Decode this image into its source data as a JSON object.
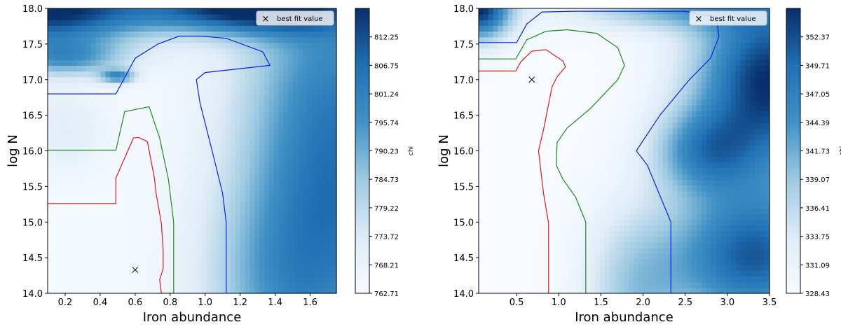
{
  "chart_data": [
    {
      "type": "heatmap",
      "xlabel": "Iron abundance",
      "ylabel": "log N",
      "xlim": [
        0.1,
        1.75
      ],
      "ylim": [
        14.0,
        18.0
      ],
      "xticks": [
        0.2,
        0.4,
        0.6,
        0.8,
        1.0,
        1.2,
        1.4,
        1.6
      ],
      "xtick_labels": [
        "0.2",
        "0.4",
        "0.6",
        "0.8",
        "1.0",
        "1.2",
        "1.4",
        "1.6"
      ],
      "yticks": [
        14.0,
        14.5,
        15.0,
        15.5,
        16.0,
        16.5,
        17.0,
        17.5,
        18.0
      ],
      "ytick_labels": [
        "14.0",
        "14.5",
        "15.0",
        "15.5",
        "16.0",
        "16.5",
        "17.0",
        "17.5",
        "18.0"
      ],
      "colorbar": {
        "label": "chi",
        "range": [
          762.71,
          817.75
        ],
        "colors": [
          "#f7fbff",
          "#08306b"
        ],
        "ticks": [
          762.71,
          768.21,
          773.72,
          779.22,
          784.73,
          790.23,
          795.74,
          801.24,
          806.75,
          812.25
        ],
        "tick_labels": [
          "762.71",
          "768.21",
          "773.72",
          "779.22",
          "784.73",
          "790.23",
          "795.74",
          "801.24",
          "806.75",
          "812.25"
        ]
      },
      "legend": {
        "marker": "×",
        "label": "best fit value",
        "position": "upper-right"
      },
      "best_fit": {
        "x": 0.6,
        "y": 14.33
      },
      "contours": [
        {
          "color": "#e31a1c",
          "points": [
            [
              0.1,
              15.26
            ],
            [
              0.49,
              15.26
            ],
            [
              0.49,
              15.62
            ],
            [
              0.59,
              16.18
            ],
            [
              0.62,
              16.19
            ],
            [
              0.67,
              16.13
            ],
            [
              0.71,
              15.62
            ],
            [
              0.72,
              15.4
            ],
            [
              0.75,
              14.98
            ],
            [
              0.76,
              14.6
            ],
            [
              0.76,
              14.35
            ],
            [
              0.74,
              14.19
            ],
            [
              0.75,
              14.0
            ]
          ]
        },
        {
          "color": "#1f8a1f",
          "points": [
            [
              0.1,
              16.01
            ],
            [
              0.49,
              16.01
            ],
            [
              0.54,
              16.55
            ],
            [
              0.68,
              16.62
            ],
            [
              0.74,
              16.18
            ],
            [
              0.79,
              15.6
            ],
            [
              0.82,
              15.0
            ],
            [
              0.82,
              14.0
            ]
          ]
        },
        {
          "color": "#0b20e6",
          "points": [
            [
              0.1,
              16.8
            ],
            [
              0.49,
              16.8
            ],
            [
              0.6,
              17.3
            ],
            [
              0.73,
              17.5
            ],
            [
              0.85,
              17.61
            ],
            [
              0.98,
              17.61
            ],
            [
              1.12,
              17.58
            ],
            [
              1.33,
              17.39
            ],
            [
              1.37,
              17.2
            ],
            [
              1.0,
              17.1
            ],
            [
              0.95,
              17.0
            ],
            [
              0.97,
              16.68
            ],
            [
              1.04,
              16.0
            ],
            [
              1.1,
              15.4
            ],
            [
              1.12,
              15.0
            ],
            [
              1.12,
              14.0
            ]
          ]
        }
      ],
      "field": {
        "base": 0.02,
        "bumps": [
          {
            "x": 0.1,
            "y": 18.0,
            "sx": 0.55,
            "sy": 0.55,
            "a": 1.0
          },
          {
            "x": 0.5,
            "y": 17.05,
            "sx": 0.1,
            "sy": 0.1,
            "a": 0.55
          },
          {
            "x": 0.2,
            "y": 17.3,
            "sx": 0.35,
            "sy": 0.25,
            "a": 0.45
          },
          {
            "x": 1.2,
            "y": 18.0,
            "sx": 0.6,
            "sy": 0.35,
            "a": 0.9
          },
          {
            "x": 1.75,
            "y": 16.0,
            "sx": 0.55,
            "sy": 3.0,
            "a": 0.75
          },
          {
            "x": 1.4,
            "y": 14.0,
            "sx": 0.45,
            "sy": 1.5,
            "a": 0.3
          },
          {
            "x": 0.2,
            "y": 16.3,
            "sx": 0.25,
            "sy": 0.6,
            "a": 0.15
          }
        ]
      }
    },
    {
      "type": "heatmap",
      "xlabel": "Iron abundance",
      "ylabel": "log N",
      "xlim": [
        0.05,
        3.5
      ],
      "ylim": [
        14.0,
        18.0
      ],
      "xticks": [
        0.5,
        1.0,
        1.5,
        2.0,
        2.5,
        3.0,
        3.5
      ],
      "xtick_labels": [
        "0.5",
        "1.0",
        "1.5",
        "2.0",
        "2.5",
        "3.0",
        "3.5"
      ],
      "yticks": [
        14.0,
        14.5,
        15.0,
        15.5,
        16.0,
        16.5,
        17.0,
        17.5,
        18.0
      ],
      "ytick_labels": [
        "14.0",
        "14.5",
        "15.0",
        "15.5",
        "16.0",
        "16.5",
        "17.0",
        "17.5",
        "18.0"
      ],
      "colorbar": {
        "label": "chi",
        "range": [
          328.43,
          355.03
        ],
        "colors": [
          "#f7fbff",
          "#08306b"
        ],
        "ticks": [
          328.43,
          331.09,
          333.75,
          336.41,
          339.07,
          341.73,
          344.39,
          347.05,
          349.71,
          352.37
        ],
        "tick_labels": [
          "328.43",
          "331.09",
          "333.75",
          "336.41",
          "339.07",
          "341.73",
          "344.39",
          "347.05",
          "349.71",
          "352.37"
        ]
      },
      "legend": {
        "marker": "×",
        "label": "best fit value",
        "position": "upper-right"
      },
      "best_fit": {
        "x": 0.68,
        "y": 17.0
      },
      "contours": [
        {
          "color": "#e31a1c",
          "points": [
            [
              0.05,
              17.12
            ],
            [
              0.49,
              17.12
            ],
            [
              0.55,
              17.25
            ],
            [
              0.68,
              17.4
            ],
            [
              0.85,
              17.42
            ],
            [
              1.05,
              17.26
            ],
            [
              1.08,
              17.18
            ],
            [
              0.98,
              17.04
            ],
            [
              0.92,
              16.9
            ],
            [
              0.82,
              16.3
            ],
            [
              0.76,
              16.0
            ],
            [
              0.82,
              15.4
            ],
            [
              0.88,
              14.98
            ],
            [
              0.88,
              14.0
            ]
          ]
        },
        {
          "color": "#1f8a1f",
          "points": [
            [
              0.05,
              17.29
            ],
            [
              0.49,
              17.29
            ],
            [
              0.62,
              17.56
            ],
            [
              0.85,
              17.68
            ],
            [
              1.1,
              17.7
            ],
            [
              1.45,
              17.65
            ],
            [
              1.7,
              17.45
            ],
            [
              1.78,
              17.2
            ],
            [
              1.7,
              17.0
            ],
            [
              1.38,
              16.6
            ],
            [
              1.1,
              16.32
            ],
            [
              0.98,
              16.12
            ],
            [
              0.97,
              15.8
            ],
            [
              1.05,
              15.6
            ],
            [
              1.2,
              15.35
            ],
            [
              1.32,
              15.0
            ],
            [
              1.32,
              14.0
            ]
          ]
        },
        {
          "color": "#0b20e6",
          "points": [
            [
              0.05,
              17.52
            ],
            [
              0.5,
              17.52
            ],
            [
              0.62,
              17.78
            ],
            [
              0.8,
              17.95
            ],
            [
              1.2,
              17.96
            ],
            [
              2.5,
              17.96
            ],
            [
              2.87,
              17.88
            ],
            [
              2.9,
              17.6
            ],
            [
              2.8,
              17.3
            ],
            [
              2.55,
              17.0
            ],
            [
              2.2,
              16.5
            ],
            [
              1.92,
              16.0
            ],
            [
              2.05,
              15.8
            ],
            [
              2.33,
              15.0
            ],
            [
              2.33,
              14.0
            ]
          ]
        }
      ],
      "field": {
        "base": 0.0,
        "bumps": [
          {
            "x": 0.05,
            "y": 18.0,
            "sx": 0.4,
            "sy": 0.45,
            "a": 1.0
          },
          {
            "x": 3.5,
            "y": 17.0,
            "sx": 0.9,
            "sy": 1.3,
            "a": 1.0
          },
          {
            "x": 3.3,
            "y": 14.5,
            "sx": 1.0,
            "sy": 1.0,
            "a": 0.85
          },
          {
            "x": 2.7,
            "y": 16.0,
            "sx": 0.6,
            "sy": 0.6,
            "a": 0.5
          },
          {
            "x": 2.3,
            "y": 18.0,
            "sx": 1.2,
            "sy": 0.3,
            "a": 0.45
          },
          {
            "x": 1.9,
            "y": 14.0,
            "sx": 0.6,
            "sy": 1.2,
            "a": 0.35
          }
        ]
      }
    }
  ]
}
